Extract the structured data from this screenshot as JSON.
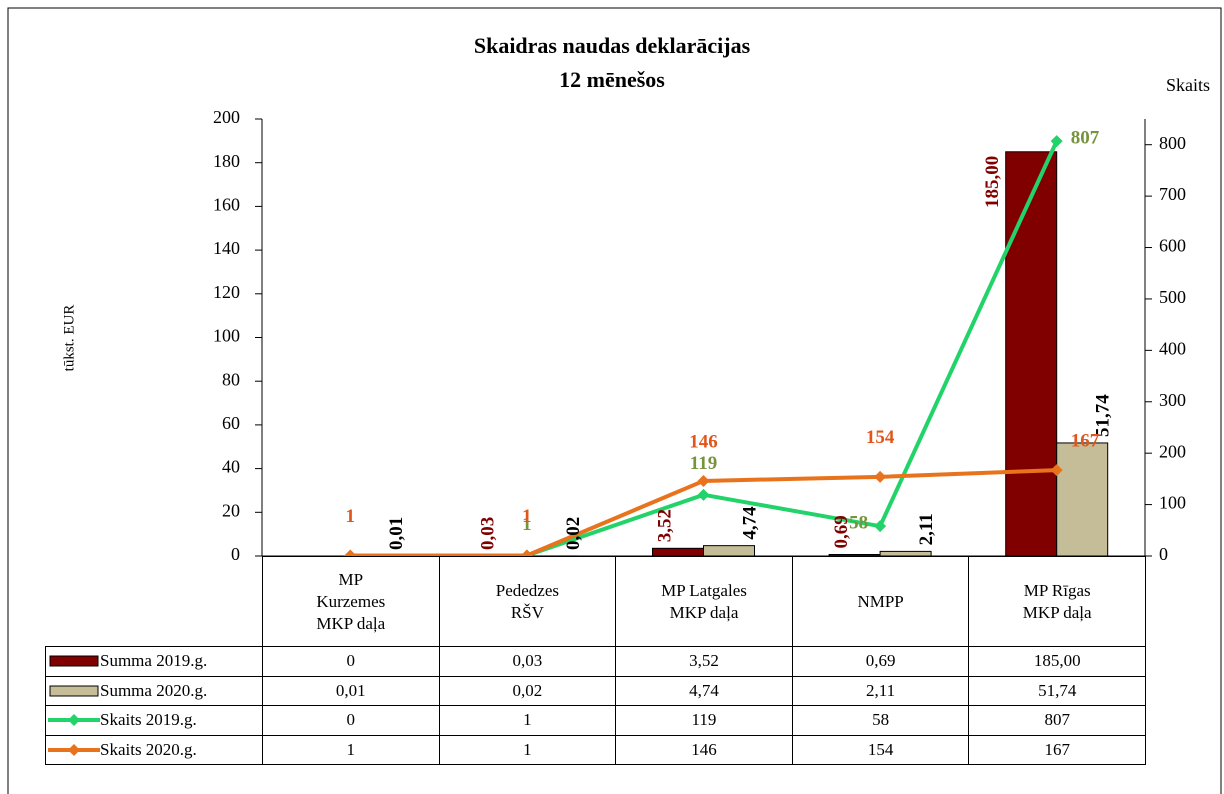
{
  "chart_data": {
    "type": "bar",
    "title": "Skaidras naudas deklarācijas",
    "subtitle": "12 mēnešos",
    "y_label": "tūkst. EUR",
    "y2_label": "Skaits",
    "categories": [
      "MP\nKurzemes\nMKP daļa",
      "Pededzes\nRŠV",
      "MP Latgales\nMKP daļa",
      "NMPP",
      "MP Rīgas\nMKP daļa"
    ],
    "series": [
      {
        "name": "Summa 2019.g.",
        "type": "bar",
        "color": "#800000",
        "label_color": "#800000",
        "values": [
          0,
          0.03,
          3.52,
          0.69,
          185
        ],
        "value_labels": [
          "0",
          "0,03",
          "3,52",
          "0,69",
          "185,00"
        ]
      },
      {
        "name": "Summa 2020.g.",
        "type": "bar",
        "color": "#c4bd97",
        "label_color": "#000000",
        "values": [
          0.01,
          0.02,
          4.74,
          2.11,
          51.74
        ],
        "value_labels": [
          "0,01",
          "0,02",
          "4,74",
          "2,11",
          "51,74"
        ]
      },
      {
        "name": "Skaits 2019.g.",
        "type": "line",
        "axis": "y2",
        "color": "#22d36a",
        "label_color": "#77933c",
        "values": [
          0,
          1,
          119,
          58,
          807
        ]
      },
      {
        "name": "Skaits 2020.g.",
        "type": "line",
        "axis": "y2",
        "color": "#e8731c",
        "label_color": "#e0561b",
        "values": [
          1,
          1,
          146,
          154,
          167
        ]
      }
    ],
    "ylim": [
      0,
      200
    ],
    "yticks": [
      0,
      20,
      40,
      60,
      80,
      100,
      120,
      140,
      160,
      180,
      200
    ],
    "y2lim": [
      0,
      850
    ],
    "y2ticks": [
      0,
      100,
      200,
      300,
      400,
      500,
      600,
      700,
      800
    ],
    "data_table": true
  }
}
